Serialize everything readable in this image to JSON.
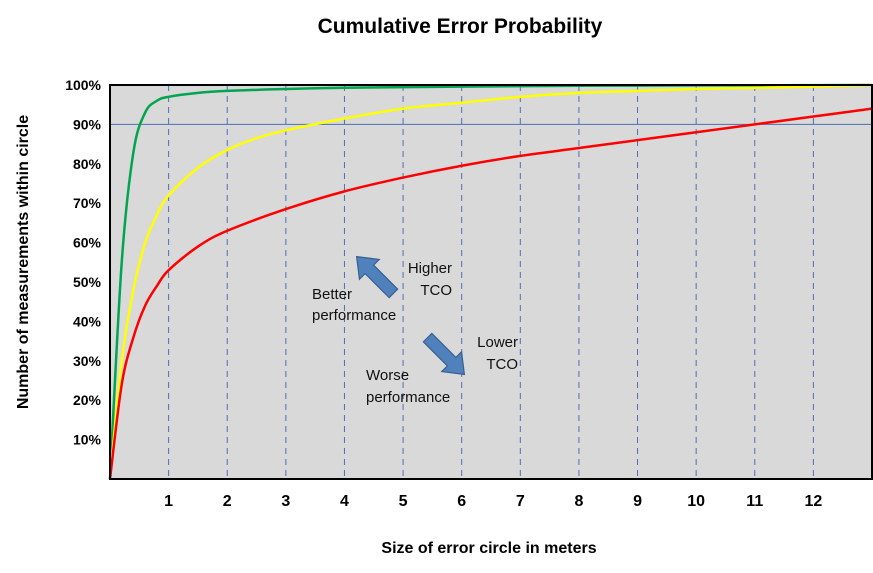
{
  "chart_data": {
    "type": "line",
    "title": "Cumulative Error Probability",
    "xlabel": "Size of error circle in meters",
    "ylabel": "Number of measurements within circle",
    "xlim": [
      0,
      13
    ],
    "ylim": [
      0,
      100
    ],
    "x_ticks": [
      1,
      2,
      3,
      4,
      5,
      6,
      7,
      8,
      9,
      10,
      11,
      12
    ],
    "y_ticks": [
      10,
      20,
      30,
      40,
      50,
      60,
      70,
      80,
      90,
      100
    ],
    "y_tick_labels": [
      "10%",
      "20%",
      "30%",
      "40%",
      "50%",
      "60%",
      "70%",
      "80%",
      "90%",
      "100%"
    ],
    "grid": {
      "vertical_dashed_every": 1,
      "horizontal_solid_at": [
        90
      ]
    },
    "plot_background": "#d9d9d9",
    "series": [
      {
        "color": "#00a550",
        "x": [
          0,
          0.2,
          0.4,
          0.6,
          0.8,
          1,
          1.5,
          2,
          3,
          4,
          6,
          8,
          10,
          13
        ],
        "y": [
          0,
          55,
          83,
          93,
          96,
          97,
          98,
          98.5,
          99,
          99.3,
          99.6,
          99.8,
          99.9,
          100
        ]
      },
      {
        "color": "#ffff00",
        "x": [
          0,
          0.2,
          0.4,
          0.6,
          0.8,
          1,
          1.5,
          2,
          2.5,
          3,
          4,
          5,
          6,
          7,
          8,
          9,
          10,
          11,
          12,
          13
        ],
        "y": [
          0,
          30,
          48,
          60,
          67,
          72,
          79,
          83.5,
          86.5,
          88.5,
          91.5,
          94,
          95.5,
          97,
          98,
          98.5,
          99,
          99.3,
          99.6,
          100
        ]
      },
      {
        "color": "#ff0000",
        "x": [
          0,
          0.2,
          0.4,
          0.6,
          0.8,
          1,
          1.5,
          2,
          3,
          4,
          5,
          6,
          7,
          8,
          9,
          10,
          11,
          12,
          13
        ],
        "y": [
          0,
          24,
          36,
          44,
          49,
          53,
          59,
          63,
          68.5,
          73,
          76.5,
          79.5,
          82,
          84,
          86,
          88,
          90,
          92,
          94
        ]
      }
    ],
    "annotations": [
      {
        "lines": [
          "Higher",
          "TCO"
        ],
        "x": 5,
        "y": 50
      },
      {
        "lines": [
          "Better",
          "performance"
        ],
        "x": 3.7,
        "y": 44
      },
      {
        "lines": [
          "Lower",
          "TCO"
        ],
        "x": 6.5,
        "y": 31
      },
      {
        "lines": [
          "Worse",
          "performance"
        ],
        "x": 5.5,
        "y": 24
      }
    ],
    "arrows": [
      {
        "direction": "up-left",
        "color": "#4f81bd"
      },
      {
        "direction": "down-right",
        "color": "#4f81bd"
      }
    ]
  }
}
